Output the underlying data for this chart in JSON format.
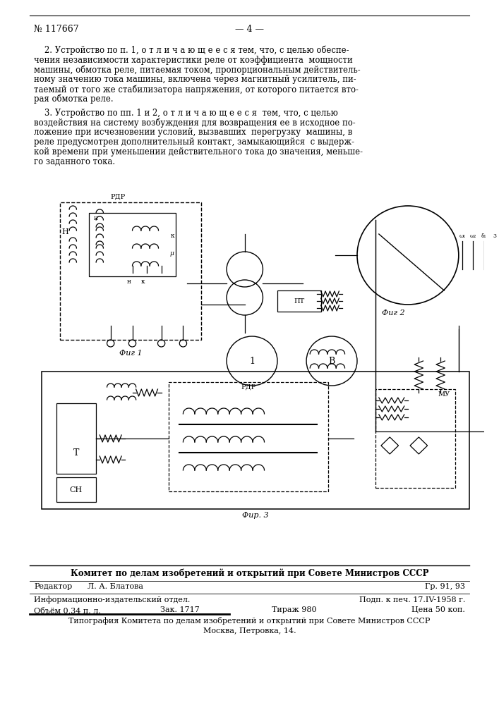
{
  "page_number": "№ 117667",
  "page_num_right": "— 4 —",
  "bg_color": "#ffffff",
  "text_color": "#000000",
  "p2_lines": [
    "    2. Устройство по п. 1, о т л и ч а ю щ е е с я тем, что, с целью обеспе-",
    "чения независимости характеристики реле от коэффициента  мощности",
    "машины, обмотка реле, питаемая током, пропорциональным действитель-",
    "ному значению тока машины, включена через магнитный усилитель, пи-",
    "таемый от того же стабилизатора напряжения, от которого питается вто-",
    "рая обмотка реле."
  ],
  "p3_lines": [
    "    3. Устройство по пп. 1 и 2, о т л и ч а ю щ е е с я  тем, что, с целью",
    "воздействия на систему возбуждения для возвращения ее в исходное по-",
    "ложение при исчезновении условий, вызвавших  перегрузку  машины, в",
    "реле предусмотрен дополнительный контакт, замыкающийся  с выдерж-",
    "кой времени при уменьшении действительного тока до значения, меньше-",
    "го заданного тока."
  ],
  "fig1_label": "Фиг 1",
  "fig2_label": "Фиг 2",
  "fig3_label": "Фир. 3",
  "footer_committee": "Комитет по делам изобретений и открытий при Совете Министров СССР",
  "footer_editor_label": "Редактор",
  "footer_editor_name": "Л. А. Блатова",
  "footer_gr": "Гр. 91, 93",
  "footer_info": "Информационно-издательский отдел.",
  "footer_podp": "Подп. к печ. 17.IV-1958 г.",
  "footer_obem_label": "Объём 0,34 п. л.",
  "footer_zak": "Зак. 1717",
  "footer_tirazh": "Тираж 980",
  "footer_cena": "Цена 50 коп.",
  "footer_tipografia": "Типография Комитета по делам изобретений и открытий при Совете Министров СССР",
  "footer_address": "Москва, Петровка, 14."
}
